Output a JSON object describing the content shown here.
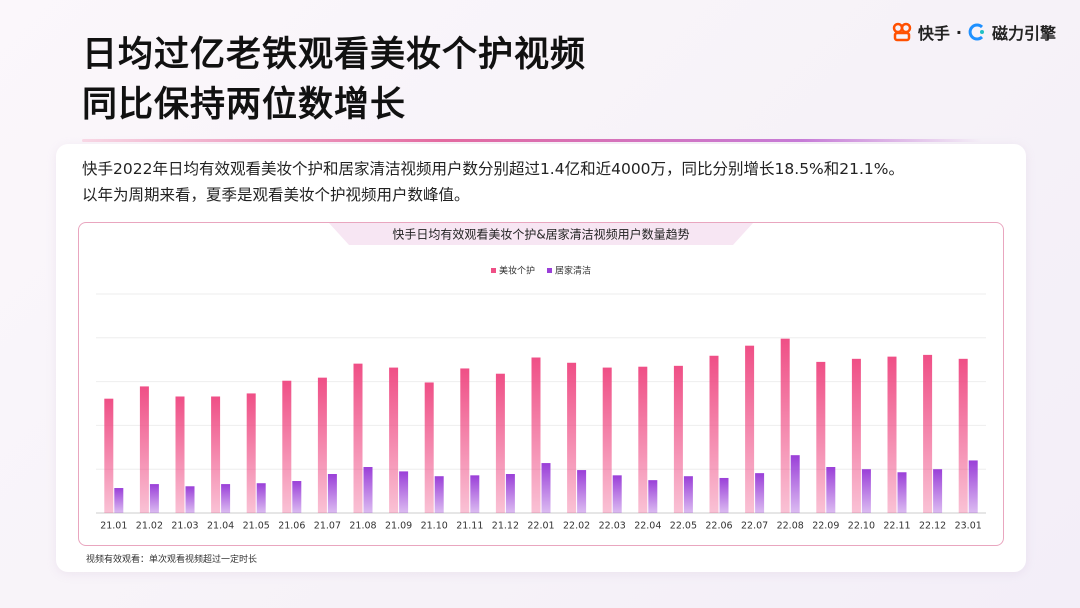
{
  "header": {
    "title": [
      "日均过亿老铁观看美妆个护视频",
      "同比保持两位数增长"
    ],
    "logo": [
      "快手",
      "·",
      "磁力引擎"
    ]
  },
  "description": [
    "快手2022年日均有效观看美妆个护和居家清洁视频用户数分别超过1.4亿和近4000万，同比分别增长18.5%和21.1%。",
    "以年为周期来看，夏季是观看美妆个护视频用户数峰值。"
  ],
  "chart_data": {
    "type": "bar",
    "title": "快手日均有效观看美妆个护&居家清洁视频用户数量趋势",
    "categories": [
      "21.01",
      "21.02",
      "21.03",
      "21.04",
      "21.05",
      "21.06",
      "21.07",
      "21.08",
      "21.09",
      "21.10",
      "21.11",
      "21.12",
      "22.01",
      "22.02",
      "22.03",
      "22.04",
      "22.05",
      "22.06",
      "22.07",
      "22.08",
      "22.09",
      "22.10",
      "22.11",
      "22.12",
      "23.01"
    ],
    "series": [
      {
        "name": "美妆个护",
        "color": "#ef4f86",
        "values": [
          2.61,
          2.89,
          2.66,
          2.66,
          2.73,
          3.02,
          3.09,
          3.41,
          3.32,
          2.98,
          3.3,
          3.18,
          3.55,
          3.43,
          3.32,
          3.34,
          3.36,
          3.59,
          3.82,
          3.98,
          3.45,
          3.52,
          3.57,
          3.61,
          3.52
        ]
      },
      {
        "name": "居家清洁",
        "color": "#9a3fd8",
        "values": [
          0.57,
          0.66,
          0.61,
          0.66,
          0.68,
          0.73,
          0.89,
          1.05,
          0.95,
          0.84,
          0.86,
          0.89,
          1.14,
          0.98,
          0.86,
          0.75,
          0.84,
          0.8,
          0.91,
          1.32,
          1.05,
          1.0,
          0.93,
          1.0,
          1.2
        ]
      }
    ],
    "ylim": [
      0,
      5
    ],
    "yticks": [
      0,
      1,
      2,
      3,
      4,
      5
    ],
    "grid": true,
    "tick_labels": false,
    "legend": "top"
  },
  "footnote": "视频有效观看：单次观看视频超过一定时长"
}
